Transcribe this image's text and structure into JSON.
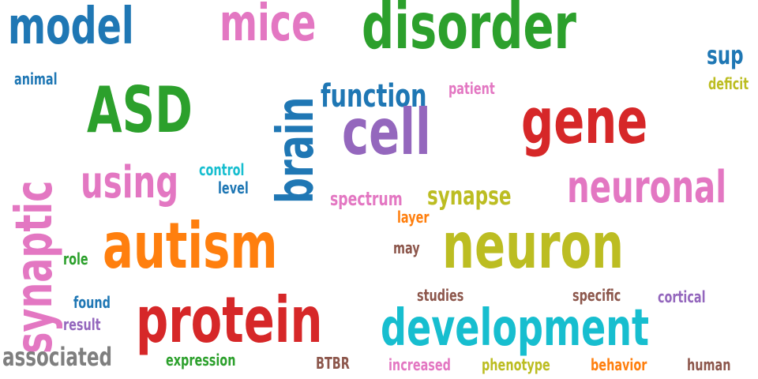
{
  "colors": {
    "blue": "#1f77b4",
    "orange": "#ff7f0e",
    "green": "#2ca02c",
    "red": "#d62728",
    "purple": "#9467bd",
    "brown": "#8c564b",
    "pink": "#e377c2",
    "gray": "#7f7f7f",
    "olive": "#bcbd22",
    "cyan": "#17becf"
  },
  "words": {
    "model": "model",
    "mice": "mice",
    "disorder": "disorder",
    "sup": "sup",
    "animal": "animal",
    "deficit": "deficit",
    "asd": "ASD",
    "brain": "brain",
    "function": "function",
    "patient": "patient",
    "cell": "cell",
    "gene": "gene",
    "synaptic": "synaptic",
    "using": "using",
    "control": "control",
    "level": "level",
    "spectrum": "spectrum",
    "synapse": "synapse",
    "neuronal": "neuronal",
    "layer": "layer",
    "autism": "autism",
    "neuron": "neuron",
    "may": "may",
    "role": "role",
    "found": "found",
    "result": "result",
    "protein": "protein",
    "studies": "studies",
    "specific": "specific",
    "cortical": "cortical",
    "development": "development",
    "associated": "associated",
    "expression": "expression",
    "btbr": "BTBR",
    "increased": "increased",
    "phenotype": "phenotype",
    "behavior": "behavior",
    "human": "human"
  }
}
